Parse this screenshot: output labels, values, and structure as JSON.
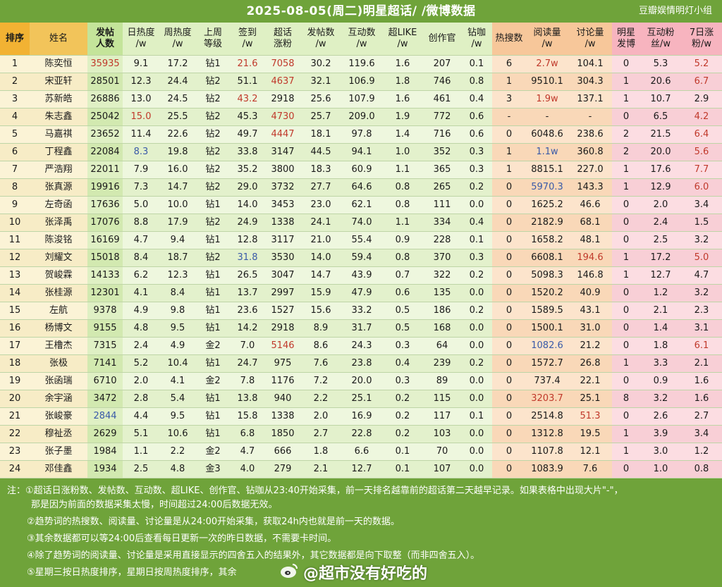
{
  "title": "2025-08-05(周二)明星超话/ /微博数据",
  "brand": "豆瓣娱情明灯小组",
  "headers": [
    {
      "key": "rank",
      "label": "排序"
    },
    {
      "key": "name",
      "label": "姓名"
    },
    {
      "key": "posters",
      "label": "发帖\n人数"
    },
    {
      "key": "day_heat",
      "label": "日热度\n/w"
    },
    {
      "key": "week_heat",
      "label": "周热度\n/w"
    },
    {
      "key": "last_week_level",
      "label": "上周\n等级"
    },
    {
      "key": "checkin",
      "label": "签到\n/w"
    },
    {
      "key": "fans_gain",
      "label": "超话\n涨粉"
    },
    {
      "key": "posts",
      "label": "发帖数\n/w"
    },
    {
      "key": "interactions",
      "label": "互动数\n/w"
    },
    {
      "key": "super_like",
      "label": "超LIKE\n/w"
    },
    {
      "key": "creators",
      "label": "创作官"
    },
    {
      "key": "diamond",
      "label": "钻咖\n/w"
    },
    {
      "key": "hot_search",
      "label": "热搜数"
    },
    {
      "key": "reads",
      "label": "阅读量\n/w"
    },
    {
      "key": "discussions",
      "label": "讨论量\n/w"
    },
    {
      "key": "star_posts",
      "label": "明星\n发博"
    },
    {
      "key": "interact_fans",
      "label": "互动粉\n丝/w"
    },
    {
      "key": "seven_day_fans",
      "label": "7日涨\n粉/w"
    }
  ],
  "rows": [
    [
      "1",
      "陈奕恒",
      "35935",
      "9.1",
      "17.2",
      "钻1",
      "21.6",
      "7058",
      "30.2",
      "119.6",
      "1.6",
      "207",
      "0.1",
      "6",
      "2.7w",
      "104.1",
      "0",
      "5.3",
      "5.2"
    ],
    [
      "2",
      "宋亚轩",
      "28501",
      "12.3",
      "24.4",
      "钻2",
      "51.1",
      "4637",
      "32.1",
      "106.9",
      "1.8",
      "746",
      "0.8",
      "1",
      "9510.1",
      "304.3",
      "1",
      "20.6",
      "6.7"
    ],
    [
      "3",
      "苏新皓",
      "26886",
      "13.0",
      "24.5",
      "钻2",
      "43.2",
      "2918",
      "25.6",
      "107.9",
      "1.6",
      "461",
      "0.4",
      "3",
      "1.9w",
      "137.1",
      "1",
      "10.7",
      "2.9"
    ],
    [
      "4",
      "朱志鑫",
      "25042",
      "15.0",
      "25.5",
      "钻2",
      "45.3",
      "4730",
      "25.7",
      "209.0",
      "1.9",
      "772",
      "0.6",
      "-",
      "-",
      "-",
      "0",
      "6.5",
      "4.2"
    ],
    [
      "5",
      "马嘉祺",
      "23652",
      "11.4",
      "22.6",
      "钻2",
      "49.7",
      "4447",
      "18.1",
      "97.8",
      "1.4",
      "716",
      "0.6",
      "0",
      "6048.6",
      "238.6",
      "2",
      "21.5",
      "6.4"
    ],
    [
      "6",
      "丁程鑫",
      "22084",
      "8.3",
      "19.8",
      "钻2",
      "33.8",
      "3147",
      "44.5",
      "94.1",
      "1.0",
      "352",
      "0.3",
      "1",
      "1.1w",
      "360.8",
      "2",
      "20.0",
      "5.6"
    ],
    [
      "7",
      "严浩翔",
      "22011",
      "7.9",
      "16.0",
      "钻2",
      "35.2",
      "3800",
      "18.3",
      "60.9",
      "1.1",
      "365",
      "0.3",
      "1",
      "8815.1",
      "227.0",
      "1",
      "17.6",
      "7.7"
    ],
    [
      "8",
      "张真源",
      "19916",
      "7.3",
      "14.7",
      "钻2",
      "29.0",
      "3732",
      "27.7",
      "64.6",
      "0.8",
      "265",
      "0.2",
      "0",
      "5970.3",
      "143.3",
      "1",
      "12.9",
      "6.0"
    ],
    [
      "9",
      "左奇函",
      "17636",
      "5.0",
      "10.0",
      "钻1",
      "14.0",
      "3453",
      "23.0",
      "62.1",
      "0.8",
      "111",
      "0.0",
      "0",
      "1625.2",
      "46.6",
      "0",
      "2.0",
      "3.4"
    ],
    [
      "10",
      "张泽禹",
      "17076",
      "8.8",
      "17.9",
      "钻2",
      "24.9",
      "1338",
      "24.1",
      "74.0",
      "1.1",
      "334",
      "0.4",
      "0",
      "2182.9",
      "68.1",
      "0",
      "2.4",
      "1.5"
    ],
    [
      "11",
      "陈浚铭",
      "16169",
      "4.7",
      "9.4",
      "钻1",
      "12.8",
      "3117",
      "21.0",
      "55.4",
      "0.9",
      "228",
      "0.1",
      "0",
      "1658.2",
      "48.1",
      "0",
      "2.5",
      "3.2"
    ],
    [
      "12",
      "刘耀文",
      "15018",
      "8.4",
      "18.7",
      "钻2",
      "31.8",
      "3530",
      "14.0",
      "59.4",
      "0.8",
      "370",
      "0.3",
      "0",
      "6608.1",
      "194.6",
      "1",
      "17.2",
      "5.0"
    ],
    [
      "13",
      "贺峻霖",
      "14133",
      "6.2",
      "12.3",
      "钻1",
      "26.5",
      "3047",
      "14.7",
      "43.9",
      "0.7",
      "322",
      "0.2",
      "0",
      "5098.3",
      "146.8",
      "1",
      "12.7",
      "4.7"
    ],
    [
      "14",
      "张桂源",
      "12301",
      "4.1",
      "8.4",
      "钻1",
      "13.7",
      "2997",
      "15.9",
      "47.9",
      "0.6",
      "135",
      "0.0",
      "0",
      "1520.2",
      "40.9",
      "0",
      "1.2",
      "3.2"
    ],
    [
      "15",
      "左航",
      "9378",
      "4.9",
      "9.8",
      "钻1",
      "23.6",
      "1527",
      "15.6",
      "33.2",
      "0.5",
      "186",
      "0.2",
      "0",
      "1589.5",
      "43.1",
      "0",
      "2.1",
      "2.3"
    ],
    [
      "16",
      "杨博文",
      "9155",
      "4.8",
      "9.5",
      "钻1",
      "14.2",
      "2918",
      "8.9",
      "31.7",
      "0.5",
      "168",
      "0.0",
      "0",
      "1500.1",
      "31.0",
      "0",
      "1.4",
      "3.1"
    ],
    [
      "17",
      "王橹杰",
      "7315",
      "2.4",
      "4.9",
      "金2",
      "7.0",
      "5146",
      "8.6",
      "24.3",
      "0.3",
      "64",
      "0.0",
      "0",
      "1082.6",
      "21.2",
      "0",
      "1.8",
      "6.1"
    ],
    [
      "18",
      "张极",
      "7141",
      "5.2",
      "10.4",
      "钻1",
      "24.7",
      "975",
      "7.6",
      "23.8",
      "0.4",
      "239",
      "0.2",
      "0",
      "1572.7",
      "26.8",
      "1",
      "3.3",
      "2.1"
    ],
    [
      "19",
      "张函瑞",
      "6710",
      "2.0",
      "4.1",
      "金2",
      "7.8",
      "1176",
      "7.2",
      "20.0",
      "0.3",
      "89",
      "0.0",
      "0",
      "737.4",
      "22.1",
      "0",
      "0.9",
      "1.6"
    ],
    [
      "20",
      "余宇涵",
      "3472",
      "2.8",
      "5.4",
      "钻1",
      "13.8",
      "940",
      "2.2",
      "25.1",
      "0.2",
      "115",
      "0.0",
      "0",
      "3203.7",
      "25.1",
      "8",
      "3.2",
      "1.6"
    ],
    [
      "21",
      "张峻豪",
      "2844",
      "4.4",
      "9.5",
      "钻1",
      "15.8",
      "1338",
      "2.0",
      "16.9",
      "0.2",
      "117",
      "0.1",
      "0",
      "2514.8",
      "51.3",
      "0",
      "2.6",
      "2.7"
    ],
    [
      "22",
      "穆祉丞",
      "2629",
      "5.1",
      "10.6",
      "钻1",
      "6.8",
      "1850",
      "2.7",
      "22.8",
      "0.2",
      "103",
      "0.0",
      "0",
      "1312.8",
      "19.5",
      "1",
      "3.9",
      "3.4"
    ],
    [
      "23",
      "张子墨",
      "1984",
      "1.1",
      "2.2",
      "金2",
      "4.7",
      "666",
      "1.8",
      "6.6",
      "0.1",
      "70",
      "0.0",
      "0",
      "1107.8",
      "12.1",
      "1",
      "3.0",
      "1.2"
    ],
    [
      "24",
      "邓佳鑫",
      "1934",
      "2.5",
      "4.8",
      "金3",
      "4.0",
      "279",
      "2.1",
      "12.7",
      "0.1",
      "107",
      "0.0",
      "0",
      "1083.9",
      "7.6",
      "0",
      "1.0",
      "0.8"
    ]
  ],
  "highlights": {
    "red": [
      [
        0,
        2
      ],
      [
        0,
        6
      ],
      [
        0,
        7
      ],
      [
        0,
        14
      ],
      [
        0,
        18
      ],
      [
        1,
        7
      ],
      [
        1,
        18
      ],
      [
        2,
        6
      ],
      [
        2,
        14
      ],
      [
        3,
        3
      ],
      [
        3,
        7
      ],
      [
        3,
        18
      ],
      [
        4,
        7
      ],
      [
        4,
        18
      ],
      [
        5,
        14
      ],
      [
        5,
        18
      ],
      [
        6,
        18
      ],
      [
        7,
        18
      ],
      [
        11,
        15
      ],
      [
        11,
        18
      ],
      [
        16,
        7
      ],
      [
        16,
        18
      ],
      [
        19,
        14
      ],
      [
        20,
        15
      ]
    ],
    "blue": [
      [
        5,
        3
      ],
      [
        5,
        14
      ],
      [
        7,
        14
      ],
      [
        11,
        6
      ],
      [
        16,
        14
      ],
      [
        20,
        2
      ]
    ]
  },
  "notes": [
    "注：①超话日涨粉数、发帖数、互动数、超LIKE、创作官、钻咖从23:40开始采集，前一天排名越靠前的超话第二天越早记录。如果表格中出现大片\"-\"，",
    "那是因为前面的数据采集太慢，时间超过24:00后数据无效。",
    "②趋势词的热搜数、阅读量、讨论量是从24:00开始采集，获取24h内也就是前一天的数据。",
    "③其余数据都可以等24:00后查看每日更新一次的昨日数据，不需要卡时间。",
    "④除了趋势词的阅读量、讨论量是采用直接显示的四舍五入的结果外，其它数据都是向下取整（而非四舍五入）。",
    "⑤星期三按日热度排序，星期日按周热度排序，其余"
  ],
  "watermark": "@超市没有好吃的"
}
